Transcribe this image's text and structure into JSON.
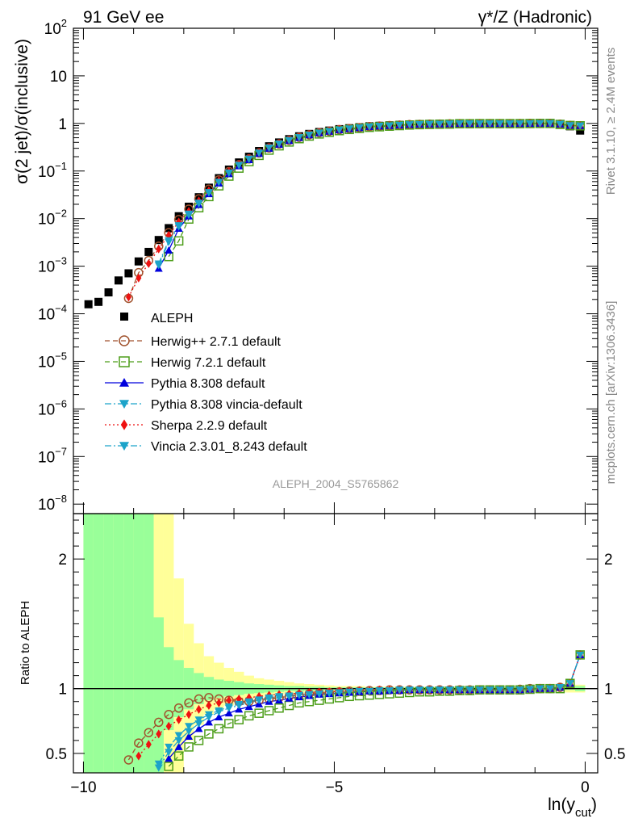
{
  "header": {
    "left_title": "91 GeV ee",
    "right_title": "γ*/Z (Hadronic)"
  },
  "side_texts": {
    "rivet": "Rivet 3.1.10, ≥ 2.4M events",
    "mcplots": "mcplots.cern.ch [arXiv:1306.3436]"
  },
  "analysis_id": "ALEPH_2004_S5765862",
  "axes": {
    "y_main_label": "σ(2 jet)/σ(inclusive)",
    "y_ratio_label": "Ratio to ALEPH",
    "x_label_main": "ln(y",
    "x_label_sub": "cut",
    "x_label_close": ")",
    "x_ticks": [
      "−10",
      "−5",
      "0"
    ],
    "y_main_ticks": [
      "10^-8",
      "10^-7",
      "10^-6",
      "10^-5",
      "10^-4",
      "10^-3",
      "10^-2",
      "10^-1",
      "1",
      "10",
      "10^2"
    ],
    "y_ratio_ticks": [
      "0.5",
      "1",
      "2"
    ]
  },
  "legend": {
    "title": "ALEPH",
    "entries": [
      {
        "label": "Herwig++ 2.7.1 default",
        "color": "#a0522d",
        "marker": "circle-open",
        "dash": "6,4"
      },
      {
        "label": "Herwig 7.2.1 default",
        "color": "#4d9e1a",
        "marker": "square-open",
        "dash": "6,4"
      },
      {
        "label": "Pythia 8.308 default",
        "color": "#0000dd",
        "marker": "triangle-up",
        "dash": ""
      },
      {
        "label": "Pythia 8.308 vincia-default",
        "color": "#1ca3c9",
        "marker": "triangle-down",
        "dash": "8,3,2,3"
      },
      {
        "label": "Sherpa 2.2.9 default",
        "color": "#ee1111",
        "marker": "diamond",
        "dash": "2,3"
      },
      {
        "label": "Vincia 2.3.01_8.243 default",
        "color": "#1ca3c9",
        "marker": "triangle-down",
        "dash": "8,3,2,3"
      }
    ]
  },
  "chart_data": {
    "type": "scatter",
    "x_range": [
      -10.2,
      0.25
    ],
    "y_main_range_log10": [
      -8.2,
      2.0
    ],
    "y_ratio_range": [
      0.35,
      2.35
    ],
    "x": [
      -9.9,
      -9.7,
      -9.5,
      -9.3,
      -9.1,
      -8.9,
      -8.7,
      -8.5,
      -8.3,
      -8.1,
      -7.9,
      -7.7,
      -7.5,
      -7.3,
      -7.1,
      -6.9,
      -6.7,
      -6.5,
      -6.3,
      -6.1,
      -5.9,
      -5.7,
      -5.5,
      -5.3,
      -5.1,
      -4.9,
      -4.7,
      -4.5,
      -4.3,
      -4.1,
      -3.9,
      -3.7,
      -3.5,
      -3.3,
      -3.1,
      -2.9,
      -2.7,
      -2.5,
      -2.3,
      -2.1,
      -1.9,
      -1.7,
      -1.5,
      -1.3,
      -1.1,
      -0.9,
      -0.7,
      -0.5,
      -0.3,
      -0.1
    ],
    "aleph_log10": [
      -3.8,
      -3.75,
      -3.55,
      -3.3,
      -3.15,
      -2.9,
      -2.7,
      -2.45,
      -2.2,
      -1.95,
      -1.75,
      -1.55,
      -1.35,
      -1.15,
      -0.97,
      -0.82,
      -0.7,
      -0.58,
      -0.48,
      -0.4,
      -0.33,
      -0.27,
      -0.22,
      -0.18,
      -0.15,
      -0.12,
      -0.1,
      -0.08,
      -0.06,
      -0.05,
      -0.04,
      -0.03,
      -0.02,
      -0.015,
      -0.01,
      -0.008,
      -0.005,
      0.0,
      0.0,
      0.0,
      0.0,
      0.0,
      0.0,
      0.0,
      0.0,
      0.0,
      0.0,
      -0.02,
      -0.06,
      -0.15
    ],
    "series": [
      {
        "name": "Herwig++ 2.7.1 default",
        "ratio": [
          null,
          null,
          null,
          null,
          0.45,
          0.58,
          0.66,
          0.74,
          0.8,
          0.85,
          0.89,
          0.92,
          0.93,
          0.92,
          0.91,
          0.9,
          0.9,
          0.91,
          0.92,
          0.93,
          0.94,
          0.95,
          0.96,
          0.965,
          0.97,
          0.975,
          0.98,
          0.98,
          0.985,
          0.985,
          0.99,
          0.99,
          0.99,
          0.99,
          0.99,
          0.99,
          0.99,
          0.99,
          0.99,
          0.99,
          0.99,
          0.99,
          0.99,
          0.995,
          1.0,
          1.0,
          1.0,
          1.01,
          1.04,
          1.26
        ]
      },
      {
        "name": "Herwig 7.2.1 default",
        "ratio": [
          null,
          null,
          null,
          null,
          null,
          null,
          null,
          null,
          0.4,
          0.48,
          0.55,
          0.6,
          0.65,
          0.69,
          0.73,
          0.76,
          0.79,
          0.81,
          0.83,
          0.85,
          0.87,
          0.89,
          0.9,
          0.91,
          0.92,
          0.93,
          0.94,
          0.945,
          0.95,
          0.955,
          0.96,
          0.965,
          0.97,
          0.975,
          0.975,
          0.98,
          0.98,
          0.985,
          0.985,
          0.99,
          0.99,
          0.99,
          0.99,
          0.99,
          0.995,
          1.0,
          1.0,
          1.0,
          1.04,
          1.26
        ]
      },
      {
        "name": "Pythia 8.308 default",
        "ratio": [
          null,
          null,
          null,
          null,
          null,
          null,
          null,
          0.34,
          0.46,
          0.55,
          0.63,
          0.69,
          0.74,
          0.78,
          0.81,
          0.84,
          0.86,
          0.88,
          0.9,
          0.91,
          0.925,
          0.935,
          0.945,
          0.955,
          0.96,
          0.965,
          0.97,
          0.975,
          0.98,
          0.98,
          0.985,
          0.985,
          0.99,
          0.99,
          0.99,
          0.99,
          0.99,
          0.99,
          0.99,
          0.99,
          0.99,
          0.99,
          0.99,
          0.99,
          0.995,
          1.0,
          1.0,
          1.01,
          1.04,
          1.26
        ]
      },
      {
        "name": "Pythia 8.308 vincia-default",
        "ratio": [
          null,
          null,
          null,
          null,
          null,
          null,
          null,
          0.39,
          0.51,
          0.6,
          0.67,
          0.73,
          0.78,
          0.82,
          0.85,
          0.87,
          0.89,
          0.91,
          0.92,
          0.93,
          0.94,
          0.95,
          0.955,
          0.96,
          0.965,
          0.97,
          0.975,
          0.98,
          0.98,
          0.985,
          0.985,
          0.99,
          0.99,
          0.99,
          0.99,
          0.99,
          0.99,
          0.99,
          0.99,
          0.99,
          0.99,
          0.99,
          0.99,
          0.99,
          0.995,
          1.0,
          1.0,
          1.01,
          1.04,
          1.26
        ]
      },
      {
        "name": "Sherpa 2.2.9 default",
        "ratio": [
          null,
          null,
          null,
          null,
          0.34,
          0.48,
          0.57,
          0.65,
          0.71,
          0.76,
          0.8,
          0.84,
          0.87,
          0.89,
          0.91,
          0.92,
          0.93,
          0.94,
          0.95,
          0.955,
          0.96,
          0.965,
          0.97,
          0.975,
          0.975,
          0.98,
          0.98,
          0.985,
          0.985,
          0.99,
          0.99,
          0.99,
          0.99,
          0.99,
          0.99,
          0.99,
          0.99,
          0.99,
          0.99,
          0.99,
          0.99,
          0.99,
          0.99,
          0.99,
          0.995,
          1.0,
          1.0,
          1.01,
          1.04,
          1.26
        ]
      },
      {
        "name": "Vincia 2.3.01_8.243 default",
        "ratio": [
          null,
          null,
          null,
          null,
          null,
          null,
          null,
          0.42,
          0.55,
          0.64,
          0.71,
          0.76,
          0.8,
          0.83,
          0.86,
          0.88,
          0.9,
          0.915,
          0.93,
          0.94,
          0.945,
          0.95,
          0.955,
          0.96,
          0.965,
          0.97,
          0.975,
          0.98,
          0.98,
          0.985,
          0.985,
          0.99,
          0.99,
          0.99,
          0.99,
          0.99,
          0.99,
          0.99,
          0.99,
          0.99,
          0.99,
          0.99,
          0.99,
          0.99,
          0.995,
          1.0,
          1.0,
          1.01,
          1.04,
          1.26
        ]
      }
    ],
    "band_stat_upper": [
      2.4,
      2.4,
      2.4,
      2.4,
      2.4,
      2.4,
      2.4,
      1.55,
      1.32,
      1.22,
      1.16,
      1.12,
      1.09,
      1.07,
      1.06,
      1.05,
      1.04,
      1.035,
      1.03,
      1.025,
      1.02,
      1.02,
      1.015,
      1.015,
      1.01,
      1.01,
      1.01,
      1.01,
      1.01,
      1.01,
      1.01,
      1.01,
      1.01,
      1.01,
      1.01,
      1.01,
      1.01,
      1.01,
      1.01,
      1.01,
      1.01,
      1.01,
      1.01,
      1.01,
      1.01,
      1.01,
      1.01,
      1.01,
      1.01,
      1.02
    ],
    "band_stat_lower": [
      0.3,
      0.3,
      0.3,
      0.3,
      0.3,
      0.3,
      0.3,
      0.3,
      0.68,
      0.78,
      0.84,
      0.88,
      0.91,
      0.93,
      0.94,
      0.95,
      0.96,
      0.965,
      0.97,
      0.975,
      0.98,
      0.98,
      0.985,
      0.985,
      0.99,
      0.99,
      0.99,
      0.99,
      0.99,
      0.99,
      0.99,
      0.99,
      0.99,
      0.99,
      0.99,
      0.99,
      0.99,
      0.99,
      0.99,
      0.99,
      0.99,
      0.99,
      0.99,
      0.99,
      0.99,
      0.99,
      0.99,
      0.99,
      0.99,
      0.98
    ],
    "band_total_upper": [
      2.4,
      2.4,
      2.4,
      2.4,
      2.4,
      2.4,
      2.4,
      2.4,
      2.4,
      1.85,
      1.5,
      1.35,
      1.25,
      1.2,
      1.16,
      1.13,
      1.1,
      1.08,
      1.07,
      1.06,
      1.05,
      1.04,
      1.035,
      1.03,
      1.025,
      1.02,
      1.02,
      1.02,
      1.015,
      1.015,
      1.015,
      1.015,
      1.015,
      1.015,
      1.015,
      1.015,
      1.015,
      1.015,
      1.015,
      1.015,
      1.015,
      1.015,
      1.015,
      1.015,
      1.015,
      1.015,
      1.015,
      1.02,
      1.03,
      1.03
    ],
    "band_total_lower": [
      0.3,
      0.3,
      0.3,
      0.3,
      0.3,
      0.3,
      0.3,
      0.3,
      0.3,
      0.35,
      0.6,
      0.72,
      0.8,
      0.84,
      0.87,
      0.9,
      0.92,
      0.935,
      0.945,
      0.955,
      0.96,
      0.965,
      0.97,
      0.975,
      0.98,
      0.98,
      0.985,
      0.985,
      0.985,
      0.985,
      0.985,
      0.985,
      0.985,
      0.985,
      0.985,
      0.985,
      0.985,
      0.985,
      0.985,
      0.985,
      0.985,
      0.985,
      0.985,
      0.985,
      0.985,
      0.985,
      0.985,
      0.98,
      0.97,
      0.97
    ]
  }
}
